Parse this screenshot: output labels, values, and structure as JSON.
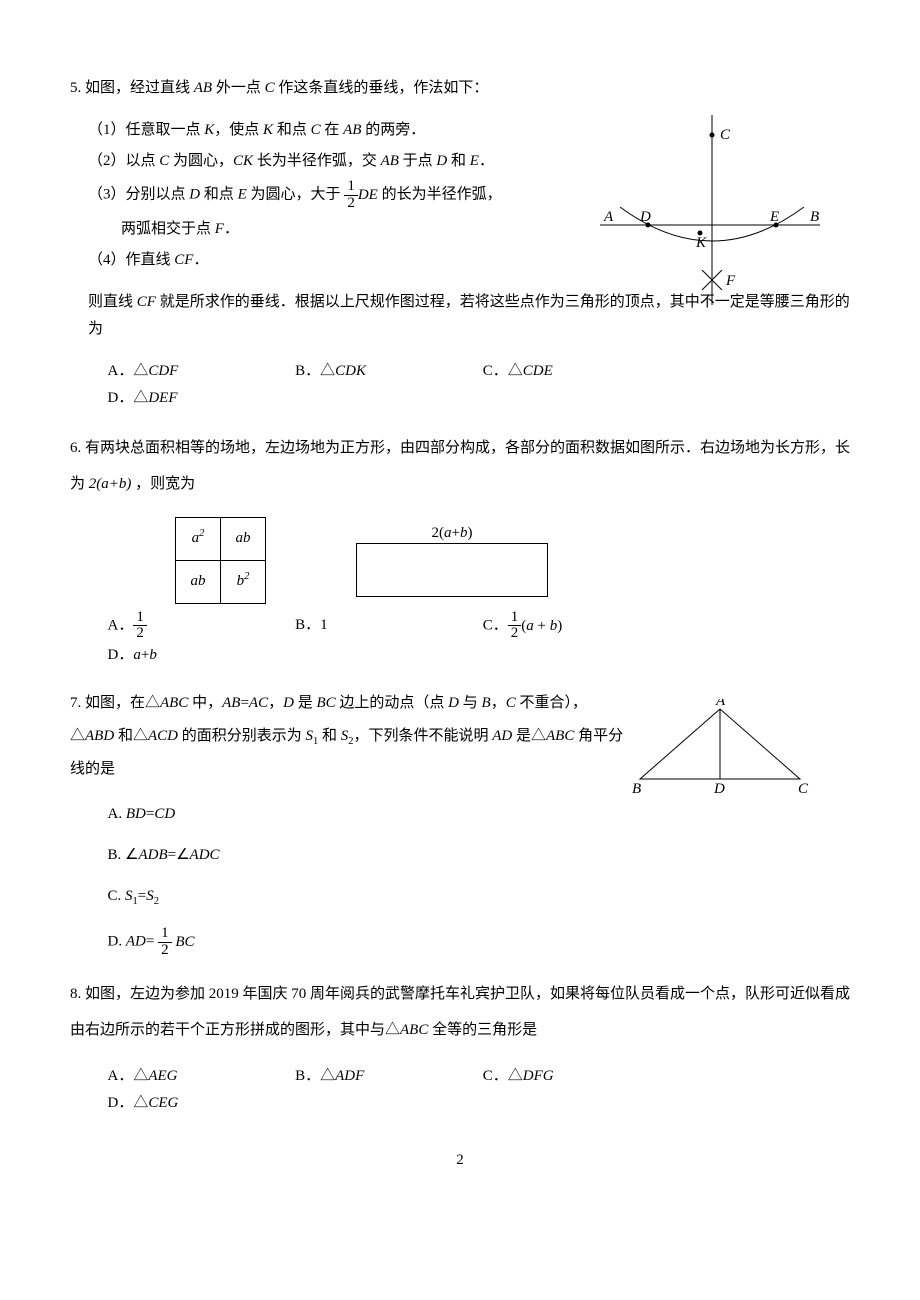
{
  "page_number": "2",
  "q5": {
    "stem": "5. 如图，经过直线 <span class='mathit'>AB</span> 外一点 <span class='mathit'>C</span> 作这条直线的垂线，作法如下：",
    "steps": [
      "（1）任意取一点 <span class='mathit'>K</span>，使点 <span class='mathit'>K</span> 和点 <span class='mathit'>C</span> 在 <span class='mathit'>AB</span> 的两旁．",
      "（2）以点 <span class='mathit'>C</span> 为圆心，<span class='mathit'>CK</span> 长为半径作弧，交 <span class='mathit'>AB</span> 于点 <span class='mathit'>D</span> 和 <span class='mathit'>E</span>．",
      "（3）分别以点 <span class='mathit'>D</span> 和点 <span class='mathit'>E</span> 为圆心，大于 <span class='frac'><span class='num'>1</span><span class='den'>2</span></span><span class='mathit inline-mid'>DE</span> 的长为半径作弧，",
      "两弧相交于点 <span class='mathit'>F</span>．",
      "（4）作直线 <span class='mathit'>CF</span>．"
    ],
    "tail": "则直线 <span class='mathit'>CF</span> 就是所求作的垂线．根据以上尺规作图过程，若将这些点作为三角形的顶点，其中不一定是等腰三角形的为",
    "options": {
      "A": "A．△<span class='mathit'>CDF</span>",
      "B": "B．△<span class='mathit'>CDK</span>",
      "C": "C．△<span class='mathit'>CDE</span>",
      "D": "D．△<span class='mathit'>DEF</span>"
    },
    "figure": {
      "labels": {
        "A": "A",
        "B": "B",
        "C": "C",
        "D": "D",
        "E": "E",
        "F": "F",
        "K": "K"
      },
      "line_color": "#000000"
    }
  },
  "q6": {
    "stem": "6. 有两块总面积相等的场地，左边场地为正方形，由四部分构成，各部分的面积数据如图所示．右边场地为长方形，长为 <span class='mathit'>2(a+b)</span> ，则宽为",
    "square_cells": {
      "tl": "a<sup>2</sup>",
      "tr": "ab",
      "bl": "ab",
      "br": "b<sup>2</sup>"
    },
    "rect_label": "2(<span class='mathit'>a</span>+<span class='mathit'>b</span>)",
    "options": {
      "A": "A．<span class='frac'><span class='num'>1</span><span class='den'>2</span></span>",
      "B": "B．1",
      "C": "C．<span class='frac'><span class='num'>1</span><span class='den'>2</span></span><span class='inline-mid'>(<span class='mathit'>a</span> + <span class='mathit'>b</span>)</span>",
      "D": "D．<span class='mathit'>a</span>+<span class='mathit'>b</span>"
    }
  },
  "q7": {
    "stem": "7. 如图，在△<span class='mathit'>ABC</span> 中，<span class='mathit'>AB</span>=<span class='mathit'>AC</span>，<span class='mathit'>D</span> 是 <span class='mathit'>BC</span> 边上的动点（点 <span class='mathit'>D</span> 与 <span class='mathit'>B</span>，<span class='mathit'>C</span> 不重合），△<span class='mathit'>ABD</span> 和△<span class='mathit'>ACD</span> 的面积分别表示为 <span class='mathit'>S</span><sub>1</sub> 和 <span class='mathit'>S</span><sub>2</sub>，下列条件不能说明 <span class='mathit'>AD</span> 是△<span class='mathit'>ABC</span> 角平分线的是",
    "options": {
      "A": "A. <span class='mathit'>BD</span>=<span class='mathit'>CD</span>",
      "B": "B. ∠<span class='mathit'>ADB</span>=∠<span class='mathit'>ADC</span>",
      "C": "C. <span class='mathit'>S</span><sub>1</sub>=<span class='mathit'>S</span><sub>2</sub>",
      "D": "D. <span class='mathit'>AD</span>= <span class='frac'><span class='num'>1</span><span class='den'>2</span></span> <span class='mathit inline-mid'>BC</span>"
    },
    "figure": {
      "labels": {
        "A": "A",
        "B": "B",
        "C": "C",
        "D": "D"
      }
    }
  },
  "q8": {
    "stem": "8. 如图，左边为参加 2019 年国庆 70 周年阅兵的武警摩托车礼宾护卫队，如果将每位队员看成一个点，队形可近似看成由右边所示的若干个正方形拼成的图形，其中与△<span class='mathit'>ABC</span> 全等的三角形是",
    "options": {
      "A": "A．△<span class='mathit'>AEG</span>",
      "B": "B．△<span class='mathit'>ADF</span>",
      "C": "C．△<span class='mathit'>DFG</span>",
      "D": "D．△<span class='mathit'>CEG</span>"
    }
  }
}
